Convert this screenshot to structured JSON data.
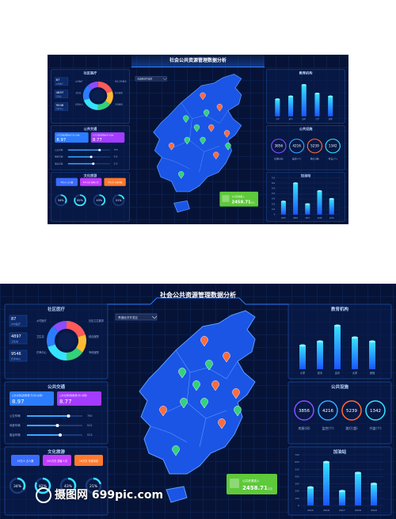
{
  "title": "社会公共资源管理数据分析",
  "region_select": "青渡经济开发区",
  "community": {
    "title": "社区医疗",
    "stats": [
      "87",
      "4897",
      "9546"
    ],
    "legend": [
      "乡村医疗",
      "卫生站",
      "疗养中心",
      "社区卫生服务",
      "综合医院",
      "专科医院"
    ]
  },
  "traffic": {
    "title": "公共交通",
    "cards": [
      {
        "label": "公共交通设施数量(万/处)(总量)",
        "value": "8.97"
      },
      {
        "label": "公共交通线路数量(条)(总量)",
        "value": "8.77"
      }
    ],
    "bars": [
      {
        "label": "公交车辆",
        "value": "750",
        "fill": 0.75
      },
      {
        "label": "地铁车辆",
        "value": "512",
        "fill": 0.55
      },
      {
        "label": "客运车辆",
        "value": "513",
        "fill": 0.6
      }
    ]
  },
  "culture": {
    "title": "文化旅游",
    "tags": [
      {
        "label": "15万人 占人数",
        "color": "#3a6cff"
      },
      {
        "label": "201万次 游客人次",
        "color": "#c13cff"
      },
      {
        "label": "16万次 年接待量",
        "color": "#ff7a2e"
      }
    ],
    "rings": [
      {
        "pct": "34%",
        "value": 0.34
      },
      {
        "pct": "82%",
        "value": 0.82
      },
      {
        "pct": "43%",
        "value": 0.43
      },
      {
        "pct": "21%",
        "value": 0.21
      }
    ]
  },
  "education": {
    "title": "教育机构",
    "categories": [
      "小学",
      "初中",
      "高中",
      "大学",
      "其他"
    ],
    "values": [
      300,
      350,
      550,
      400,
      350
    ]
  },
  "facilities": {
    "title": "公共设施",
    "items": [
      {
        "value": "3856",
        "label": "房屋(间)"
      },
      {
        "value": "4216",
        "label": "监控(个)"
      },
      {
        "value": "5239",
        "label": "路灯(盏)"
      },
      {
        "value": "1342",
        "label": "井盖(个)"
      }
    ]
  },
  "gas": {
    "title": "加油站",
    "categories": [
      "2015",
      "2016",
      "2017",
      "2018",
      "2019"
    ],
    "values": [
      250,
      600,
      200,
      450,
      300
    ],
    "ylim": [
      0,
      700
    ]
  },
  "investment": {
    "label": "公共资源投入",
    "value": "2458.71",
    "unit": "万元"
  },
  "watermark": "摄图网 699pic.com"
}
